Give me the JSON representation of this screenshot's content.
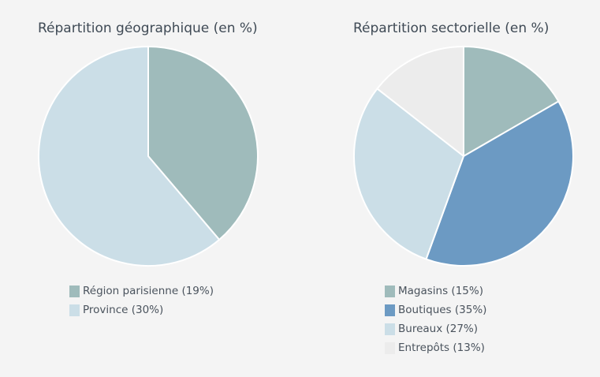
{
  "chart_data": [
    {
      "type": "pie",
      "title": "Répartition géographique (en %)",
      "legend_position": "bottom",
      "categories": [
        "Région parisienne (19%)",
        "Province (30%)"
      ],
      "values": [
        19,
        30
      ],
      "colors": [
        "#9fbbbb",
        "#cbdee7"
      ]
    },
    {
      "type": "pie",
      "title": "Répartition sectorielle (en %)",
      "legend_position": "bottom",
      "categories": [
        "Magasins (15%)",
        "Boutiques (35%)",
        "Bureaux (27%)",
        "Entrepôts (13%)"
      ],
      "values": [
        15,
        35,
        27,
        13
      ],
      "colors": [
        "#9fbbbb",
        "#6c9ac3",
        "#cbdee7",
        "#ececec"
      ]
    }
  ]
}
